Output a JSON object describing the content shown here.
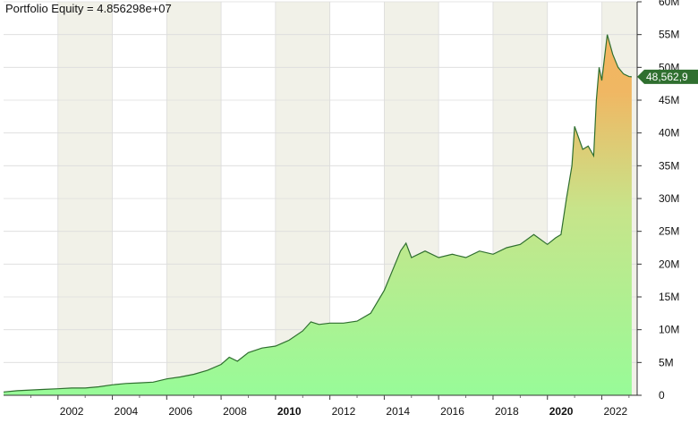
{
  "chart_data": {
    "type": "area",
    "title": "Portfolio Equity = 4.856298e+07",
    "series": [
      {
        "x": [
          2000.0,
          2000.5,
          2001.0,
          2001.5,
          2002.0,
          2002.5,
          2003.0,
          2003.5,
          2004.0,
          2004.5,
          2005.0,
          2005.5,
          2006.0,
          2006.5,
          2007.0,
          2007.5,
          2008.0,
          2008.3,
          2008.6,
          2009.0,
          2009.5,
          2010.0,
          2010.5,
          2011.0,
          2011.3,
          2011.6,
          2012.0,
          2012.5,
          2013.0,
          2013.5,
          2014.0,
          2014.3,
          2014.6,
          2014.8,
          2015.0,
          2015.5,
          2016.0,
          2016.5,
          2017.0,
          2017.5,
          2018.0,
          2018.5,
          2019.0,
          2019.5,
          2020.0,
          2020.3,
          2020.5,
          2020.7,
          2020.9,
          2021.0,
          2021.3,
          2021.5,
          2021.7,
          2021.8,
          2021.9,
          2022.0,
          2022.2,
          2022.4,
          2022.6,
          2022.8,
          2023.0,
          2023.1
        ],
        "y": [
          0.5,
          0.7,
          0.8,
          0.9,
          1.0,
          1.1,
          1.1,
          1.3,
          1.6,
          1.8,
          1.9,
          2.0,
          2.5,
          2.8,
          3.2,
          3.8,
          4.7,
          5.8,
          5.2,
          6.5,
          7.2,
          7.5,
          8.4,
          9.8,
          11.2,
          10.8,
          11.0,
          11.0,
          11.3,
          12.5,
          16.0,
          19.0,
          22.0,
          23.2,
          21.0,
          22.0,
          21.0,
          21.5,
          21.0,
          22.0,
          21.5,
          22.5,
          23.0,
          24.5,
          23.0,
          24.0,
          24.5,
          30.0,
          35.0,
          41.0,
          37.5,
          38.0,
          36.5,
          45.0,
          50.0,
          48.0,
          55.0,
          52.0,
          50.0,
          49.0,
          48.6,
          48.56
        ]
      }
    ],
    "x_ticks": [
      "2002",
      "2004",
      "2006",
      "2008",
      "2010",
      "2012",
      "2014",
      "2016",
      "2018",
      "2020",
      "2022"
    ],
    "y_ticks": [
      "0",
      "5M",
      "10M",
      "15M",
      "20M",
      "25M",
      "30M",
      "35M",
      "40M",
      "45M",
      "50M",
      "55M",
      "60M"
    ],
    "xlim": [
      2000.0,
      2023.3
    ],
    "ylim": [
      0,
      60
    ],
    "y_unit": "M",
    "last_value_label": "48,562,9",
    "grid": true,
    "colors": {
      "fill_bottom": "#98fb98",
      "fill_top": "#f4b55e",
      "line": "#2f6f2f",
      "band": "#f1f1e8",
      "last_label_bg": "#2f6f2f",
      "grid": "#dcdcdc"
    }
  }
}
